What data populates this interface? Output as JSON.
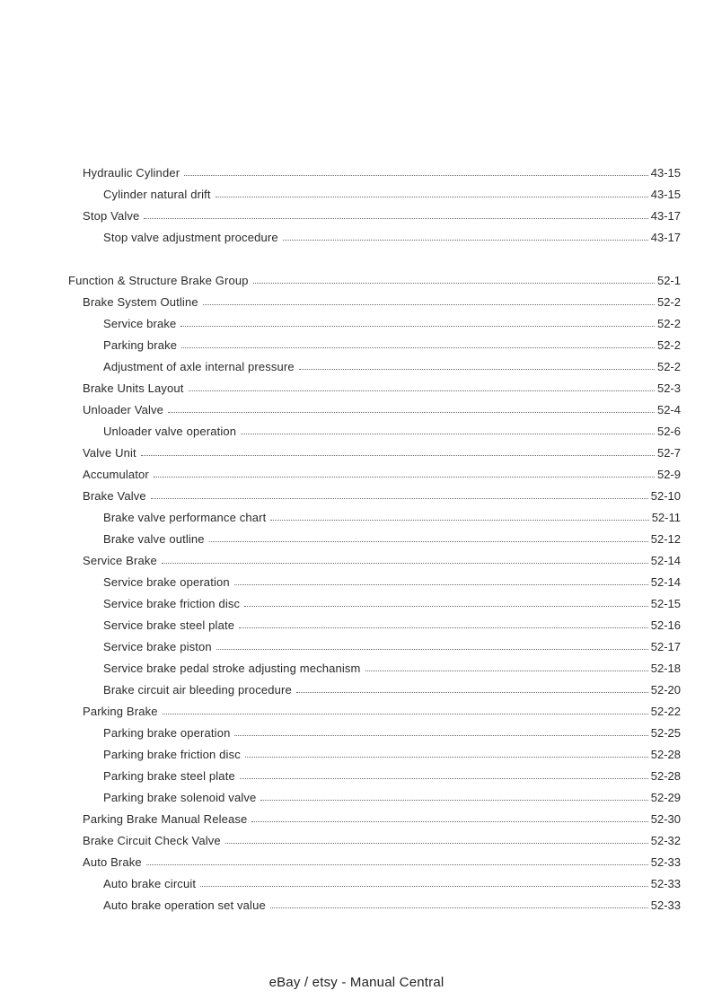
{
  "page": {
    "footer_text": "eBay / etsy - Manual Central"
  },
  "colors": {
    "background": "#ffffff",
    "text": "#2a2a2a",
    "leader_dots": "#6a6a6a"
  },
  "toc": {
    "sections": [
      {
        "entries": [
          {
            "level": 1,
            "title": "Hydraulic Cylinder",
            "page": "43-15"
          },
          {
            "level": 2,
            "title": "Cylinder natural drift",
            "page": "43-15"
          },
          {
            "level": 1,
            "title": "Stop Valve",
            "page": "43-17"
          },
          {
            "level": 2,
            "title": "Stop valve adjustment procedure",
            "page": "43-17"
          }
        ]
      },
      {
        "entries": [
          {
            "level": 0,
            "title": "Function & Structure Brake Group",
            "page": "52-1"
          },
          {
            "level": 1,
            "title": "Brake System Outline",
            "page": "52-2"
          },
          {
            "level": 2,
            "title": "Service brake",
            "page": "52-2"
          },
          {
            "level": 2,
            "title": "Parking brake",
            "page": "52-2"
          },
          {
            "level": 2,
            "title": "Adjustment of axle internal pressure",
            "page": "52-2"
          },
          {
            "level": 1,
            "title": "Brake Units Layout",
            "page": "52-3"
          },
          {
            "level": 1,
            "title": "Unloader Valve",
            "page": "52-4"
          },
          {
            "level": 2,
            "title": "Unloader valve operation",
            "page": "52-6"
          },
          {
            "level": 1,
            "title": "Valve Unit",
            "page": "52-7"
          },
          {
            "level": 1,
            "title": "Accumulator",
            "page": "52-9"
          },
          {
            "level": 1,
            "title": "Brake Valve",
            "page": "52-10"
          },
          {
            "level": 2,
            "title": "Brake valve performance chart",
            "page": "52-11"
          },
          {
            "level": 2,
            "title": "Brake valve outline",
            "page": "52-12"
          },
          {
            "level": 1,
            "title": "Service Brake",
            "page": "52-14"
          },
          {
            "level": 2,
            "title": "Service brake operation",
            "page": "52-14"
          },
          {
            "level": 2,
            "title": "Service brake friction disc",
            "page": "52-15"
          },
          {
            "level": 2,
            "title": "Service brake steel plate",
            "page": "52-16"
          },
          {
            "level": 2,
            "title": "Service brake piston",
            "page": "52-17"
          },
          {
            "level": 2,
            "title": "Service brake pedal stroke adjusting mechanism",
            "page": "52-18"
          },
          {
            "level": 2,
            "title": "Brake circuit air bleeding procedure",
            "page": "52-20"
          },
          {
            "level": 1,
            "title": "Parking Brake",
            "page": "52-22"
          },
          {
            "level": 2,
            "title": "Parking brake operation",
            "page": "52-25"
          },
          {
            "level": 2,
            "title": "Parking brake friction disc",
            "page": "52-28"
          },
          {
            "level": 2,
            "title": "Parking brake steel plate",
            "page": "52-28"
          },
          {
            "level": 2,
            "title": "Parking brake solenoid valve",
            "page": "52-29"
          },
          {
            "level": 1,
            "title": "Parking Brake Manual Release",
            "page": "52-30"
          },
          {
            "level": 1,
            "title": "Brake Circuit Check Valve",
            "page": "52-32"
          },
          {
            "level": 1,
            "title": "Auto Brake",
            "page": "52-33"
          },
          {
            "level": 2,
            "title": "Auto brake circuit",
            "page": "52-33"
          },
          {
            "level": 2,
            "title": "Auto brake operation set value",
            "page": "52-33"
          }
        ]
      }
    ]
  }
}
